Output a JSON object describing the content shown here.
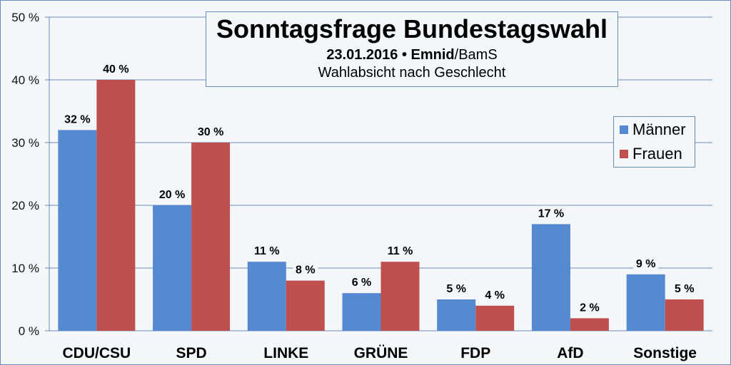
{
  "title": "Sonntagsfrage Bundestagswahl",
  "subtitle_date": "23.01.2016 •",
  "subtitle_institute": "Emnid",
  "subtitle_source": "/BamS",
  "subtitle2": "Wahlabsicht nach Geschlecht",
  "colors": {
    "maenner": "#5589d0",
    "frauen": "#c0504d",
    "grid": "#6b8cb4",
    "background": "#f3f7fa"
  },
  "chart_data": {
    "type": "bar",
    "title": "Sonntagsfrage Bundestagswahl",
    "subtitle": "23.01.2016 • Emnid/BamS — Wahlabsicht nach Geschlecht",
    "categories": [
      "CDU/CSU",
      "SPD",
      "LINKE",
      "GRÜNE",
      "FDP",
      "AfD",
      "Sonstige"
    ],
    "series": [
      {
        "name": "Männer",
        "values": [
          32,
          20,
          11,
          6,
          5,
          17,
          9
        ],
        "labels": [
          "32 %",
          "20 %",
          "11 %",
          "6 %",
          "5 %",
          "17 %",
          "9 %"
        ]
      },
      {
        "name": "Frauen",
        "values": [
          40,
          30,
          8,
          11,
          4,
          2,
          5
        ],
        "labels": [
          "40 %",
          "30 %",
          "8 %",
          "11 %",
          "4 %",
          "2 %",
          "5 %"
        ]
      }
    ],
    "yticks": [
      "0 %",
      "10 %",
      "20 %",
      "30 %",
      "40 %",
      "50 %"
    ],
    "ytick_values": [
      0,
      10,
      20,
      30,
      40,
      50
    ],
    "ylim": [
      0,
      50
    ],
    "xlabel": "",
    "ylabel": "",
    "grid": true,
    "legend_position": "right"
  }
}
